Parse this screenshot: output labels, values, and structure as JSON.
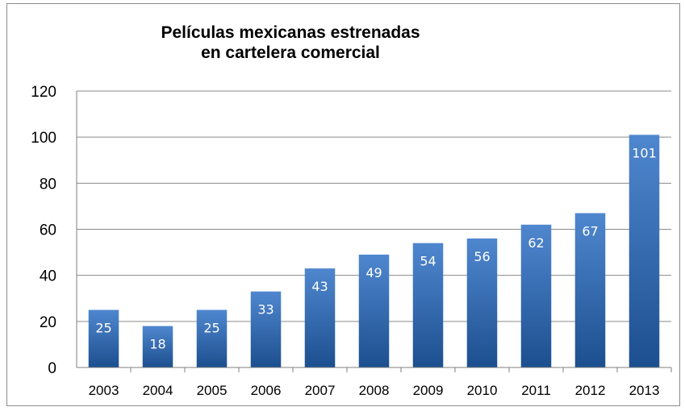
{
  "chart_data": {
    "type": "bar",
    "title_lines": [
      "Películas mexicanas estrenadas",
      "en cartelera comercial"
    ],
    "categories": [
      "2003",
      "2004",
      "2005",
      "2006",
      "2007",
      "2008",
      "2009",
      "2010",
      "2011",
      "2012",
      "2013"
    ],
    "values": [
      25,
      18,
      25,
      33,
      43,
      49,
      54,
      56,
      62,
      67,
      101
    ],
    "data_labels": [
      "25",
      "18",
      "25",
      "33",
      "43",
      "49",
      "54",
      "56",
      "62",
      "67",
      "101"
    ],
    "ylim": [
      0,
      120
    ],
    "yticks": [
      0,
      20,
      40,
      60,
      80,
      100,
      120
    ],
    "xlabel": "",
    "ylabel": "",
    "grid": true,
    "legend": "none",
    "colors": {
      "bar_top": "#4f87cf",
      "bar_bottom": "#1c4f8f",
      "grid": "#8a8a8a",
      "axis": "#7f7f7f"
    }
  }
}
